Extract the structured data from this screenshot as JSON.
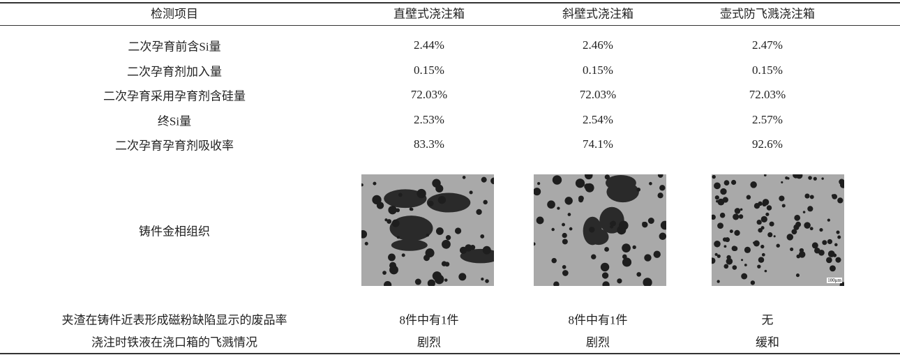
{
  "table": {
    "header": [
      "检测项目",
      "直壁式浇注箱",
      "斜壁式浇注箱",
      "壶式防飞溅浇注箱"
    ],
    "rows": [
      [
        "二次孕育前含Si量",
        "2.44%",
        "2.46%",
        "2.47%"
      ],
      [
        "二次孕育剂加入量",
        "0.15%",
        "0.15%",
        "0.15%"
      ],
      [
        "二次孕育采用孕育剂含硅量",
        "72.03%",
        "72.03%",
        "72.03%"
      ],
      [
        "终Si量",
        "2.53%",
        "2.54%",
        "2.57%"
      ],
      [
        "二次孕育孕育剂吸收率",
        "83.3%",
        "74.1%",
        "92.6%"
      ]
    ],
    "image_row_label": "铸件金相组织",
    "micrograph_scale": "100μm",
    "rows_after": [
      [
        "夹渣在铸件近表形成磁粉缺陷显示的废品率",
        "8件中有1件",
        "8件中有1件",
        "无"
      ],
      [
        "浇注时铁液在浇口箱的飞溅情况",
        "剧烈",
        "剧烈",
        "缓和"
      ]
    ]
  }
}
